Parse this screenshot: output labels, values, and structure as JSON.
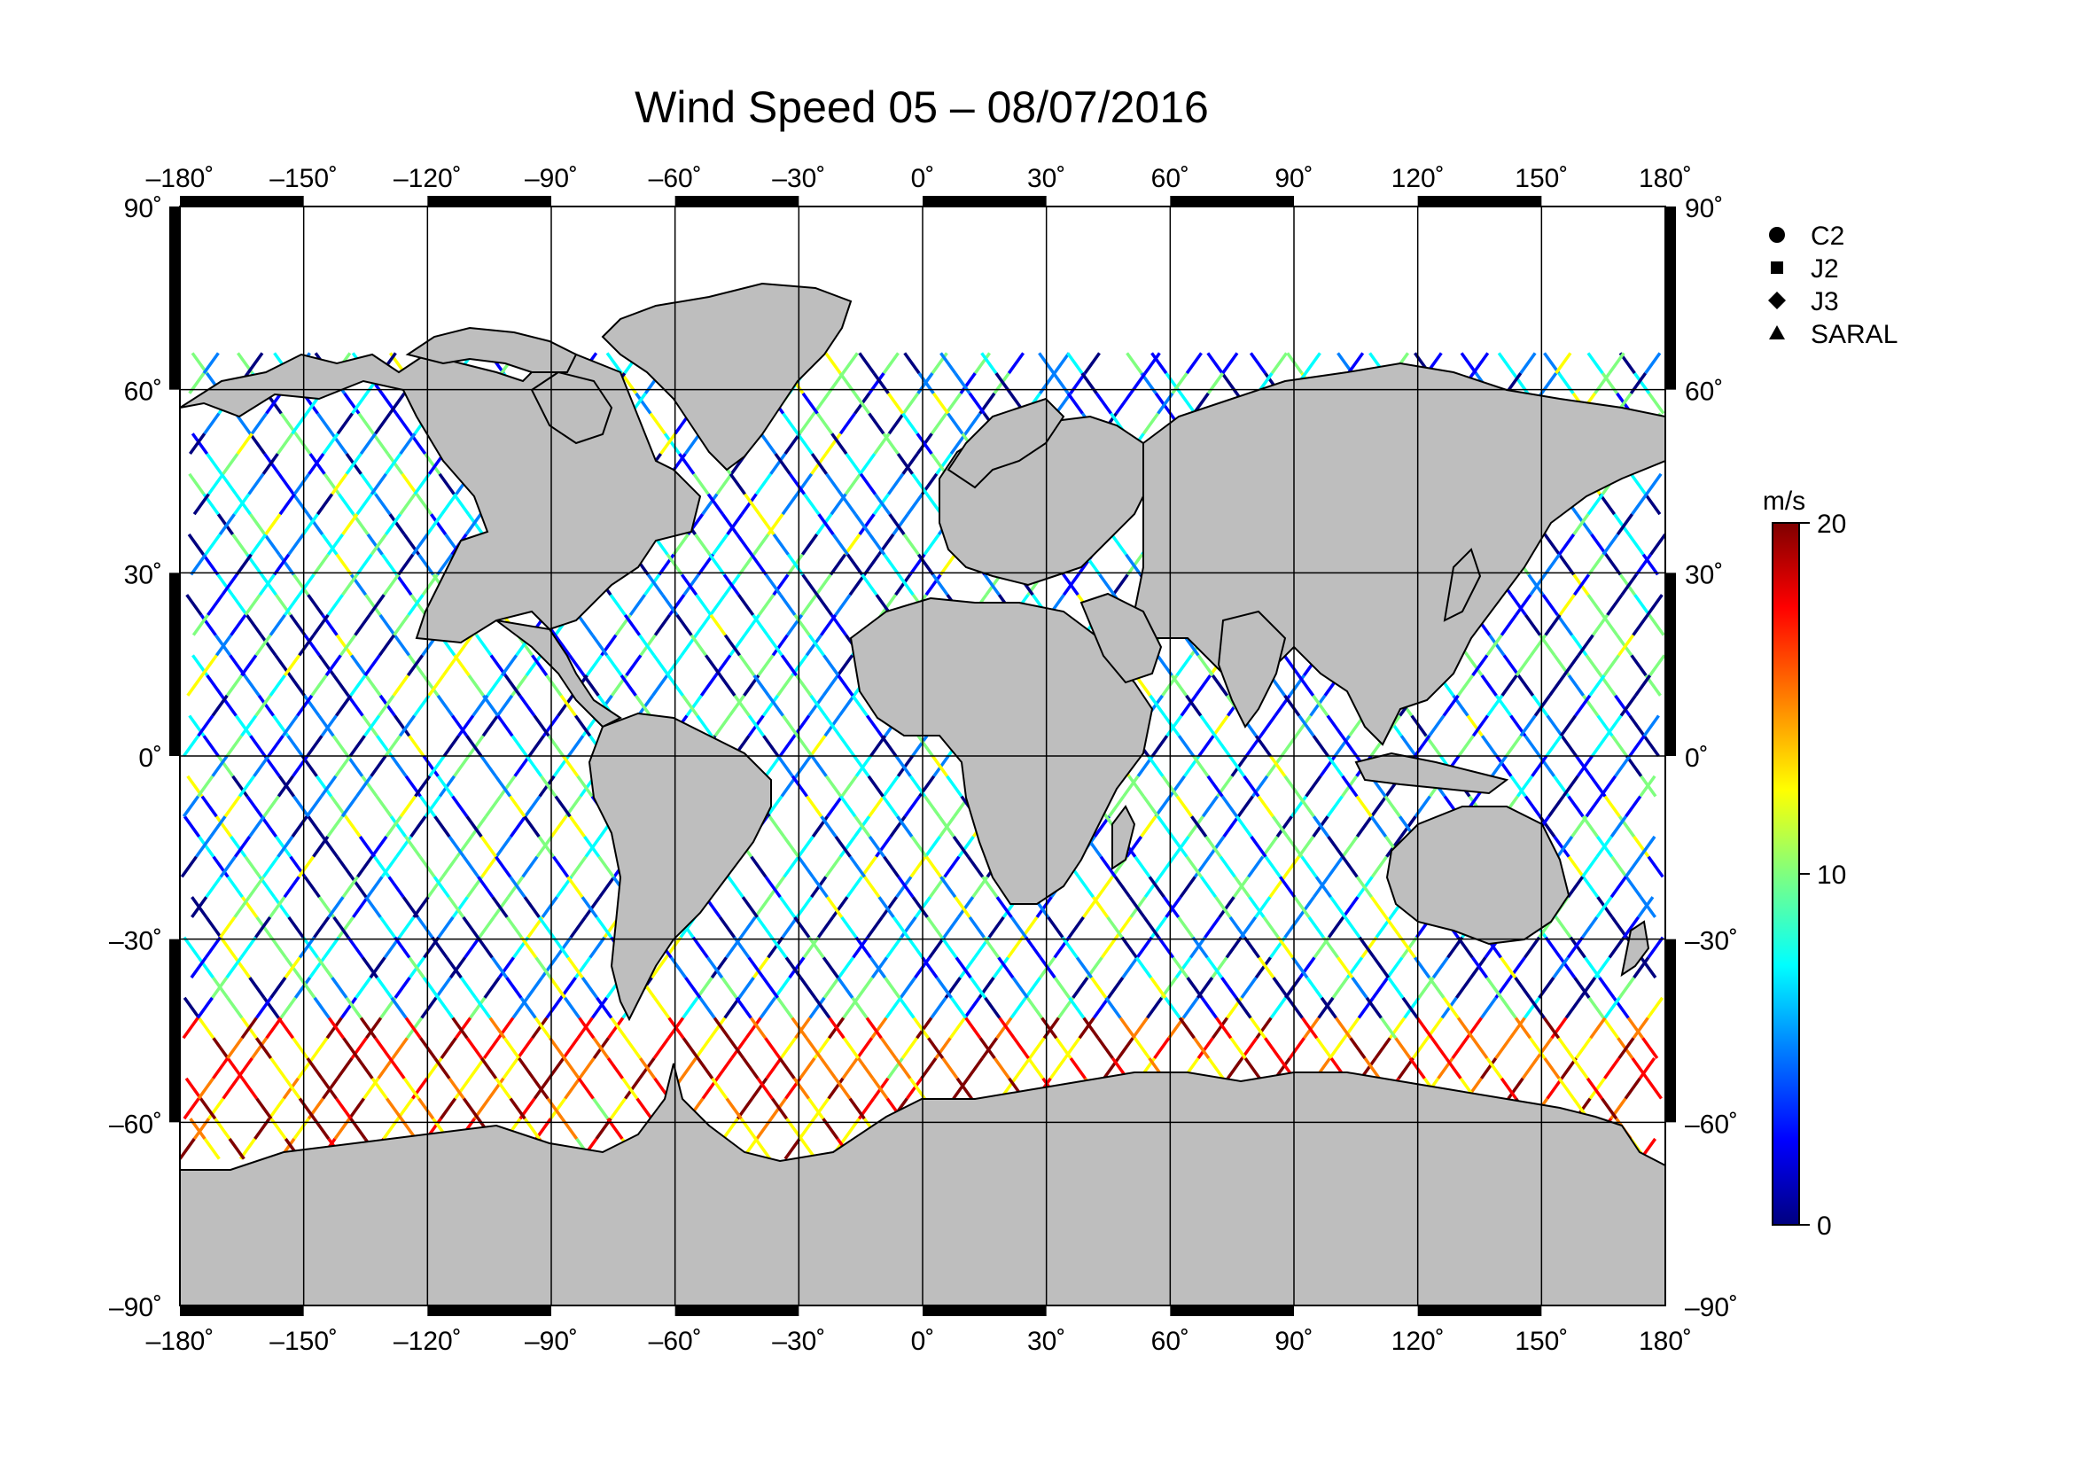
{
  "title": "Wind Speed 05 – 08/07/2016",
  "lon_ticks": [
    "–180˚",
    "–150˚",
    "–120˚",
    "–90˚",
    "–60˚",
    "–30˚",
    "0˚",
    "30˚",
    "60˚",
    "90˚",
    "120˚",
    "150˚",
    "180˚"
  ],
  "lat_ticks_left": [
    "90˚",
    "60˚",
    "30˚",
    "0˚",
    "–30˚",
    "–60˚",
    "–90˚"
  ],
  "lat_ticks_right": [
    "90˚",
    "60˚",
    "30˚",
    "0˚",
    "–30˚",
    "–60˚",
    "–90˚"
  ],
  "legend": {
    "items": [
      {
        "label": "C2",
        "marker": "circle"
      },
      {
        "label": "J2",
        "marker": "square"
      },
      {
        "label": "J3",
        "marker": "diamond"
      },
      {
        "label": "SARAL",
        "marker": "triangle"
      }
    ]
  },
  "colorbar": {
    "unit": "m/s",
    "ticks": [
      "20",
      "10",
      "0"
    ],
    "min": 0,
    "max": 20,
    "colors": [
      "#00007f",
      "#0000ff",
      "#007fff",
      "#00ffff",
      "#7fff7f",
      "#ffff00",
      "#ff7f00",
      "#ff0000",
      "#7f0000"
    ]
  },
  "map": {
    "land_color": "#bebebe",
    "coast_color": "#000000",
    "extent": {
      "lon": [
        -180,
        180
      ],
      "lat": [
        -90,
        90
      ]
    }
  }
}
